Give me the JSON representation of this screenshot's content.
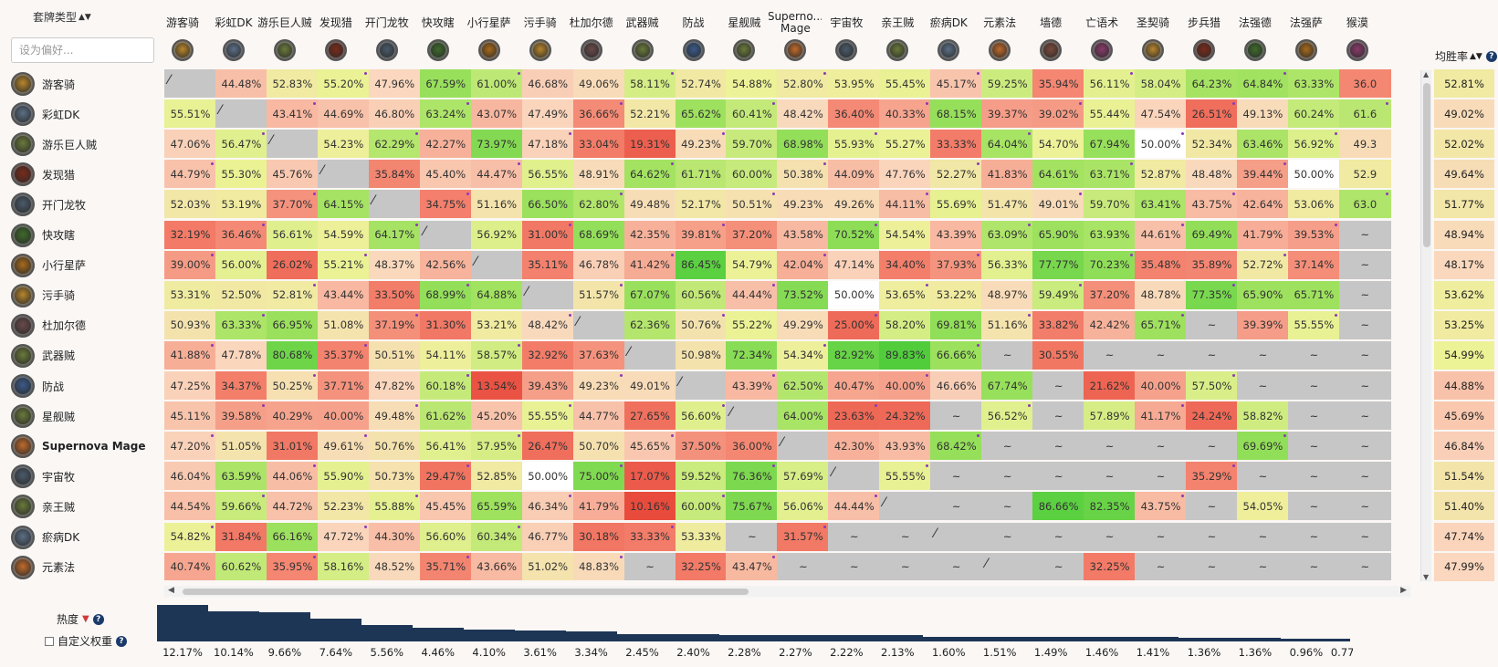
{
  "header": {
    "deck_type_label": "套牌类型",
    "search_placeholder": "设为偏好...",
    "winrate_label": "均胜率"
  },
  "footer": {
    "popularity_label": "热度",
    "custom_weight_label": "自定义权重"
  },
  "colors": {
    "red": "#f06a58",
    "neutral": "#f5f3b4",
    "green": "#63d23f",
    "grey": "#c6c6c6",
    "bar": "#1e3656"
  },
  "columns": [
    {
      "name": "游客骑",
      "icon": "paladin-icon",
      "color": "#b8862b"
    },
    {
      "name": "彩虹DK",
      "icon": "death-knight-icon",
      "color": "#5b6f86"
    },
    {
      "name": "游乐巨人贼",
      "icon": "rogue-icon",
      "color": "#6a7a3a"
    },
    {
      "name": "发现猎",
      "icon": "hunter-icon",
      "color": "#7a2a1a"
    },
    {
      "name": "开门龙牧",
      "icon": "priest-icon",
      "color": "#4a5a6a"
    },
    {
      "name": "快攻瞎",
      "icon": "demon-hunter-icon",
      "color": "#3e6a2a"
    },
    {
      "name": "小行星萨",
      "icon": "shaman-icon",
      "color": "#a86a1a"
    },
    {
      "name": "污手骑",
      "icon": "paladin-icon",
      "color": "#b8862b"
    },
    {
      "name": "杜加尔德",
      "icon": "warrior-icon",
      "color": "#6a4a4a"
    },
    {
      "name": "武器贼",
      "icon": "rogue-icon",
      "color": "#6a7a3a"
    },
    {
      "name": "防战",
      "icon": "warrior-icon",
      "color": "#3a5a8a"
    },
    {
      "name": "星舰贼",
      "icon": "rogue-icon",
      "color": "#6a7a3a"
    },
    {
      "name": "Superno...\nMage",
      "icon": "mage-icon",
      "color": "#c06a2a"
    },
    {
      "name": "宇宙牧",
      "icon": "priest-icon",
      "color": "#4a5a6a"
    },
    {
      "name": "亲王贼",
      "icon": "rogue-icon",
      "color": "#6a7a3a"
    },
    {
      "name": "瘀病DK",
      "icon": "death-knight-icon",
      "color": "#5b6f86"
    },
    {
      "name": "元素法",
      "icon": "mage-icon",
      "color": "#c06a2a"
    },
    {
      "name": "墙德",
      "icon": "druid-icon",
      "color": "#7a4a3a"
    },
    {
      "name": "亡语术",
      "icon": "warlock-icon",
      "color": "#8a3a6a"
    },
    {
      "name": "圣契骑",
      "icon": "paladin-icon",
      "color": "#b8862b"
    },
    {
      "name": "步兵猎",
      "icon": "hunter-icon",
      "color": "#7a2a1a"
    },
    {
      "name": "法强德",
      "icon": "druid-icon",
      "color": "#3e6a2a"
    },
    {
      "name": "法强萨",
      "icon": "shaman-icon",
      "color": "#a86a1a"
    },
    {
      "name": "猴漠",
      "icon": "warlock-icon",
      "color": "#8a3a6a"
    }
  ],
  "rows": [
    {
      "name": "游客骑",
      "icon": "paladin-icon",
      "color": "#b8862b",
      "winrate": "52.81%"
    },
    {
      "name": "彩虹DK",
      "icon": "death-knight-icon",
      "color": "#5b6f86",
      "winrate": "49.02%"
    },
    {
      "name": "游乐巨人贼",
      "icon": "rogue-icon",
      "color": "#6a7a3a",
      "winrate": "52.02%"
    },
    {
      "name": "发现猎",
      "icon": "hunter-icon",
      "color": "#7a2a1a",
      "winrate": "49.64%"
    },
    {
      "name": "开门龙牧",
      "icon": "priest-icon",
      "color": "#4a5a6a",
      "winrate": "51.77%"
    },
    {
      "name": "快攻瞎",
      "icon": "demon-hunter-icon",
      "color": "#3e6a2a",
      "winrate": "48.94%"
    },
    {
      "name": "小行星萨",
      "icon": "shaman-icon",
      "color": "#a86a1a",
      "winrate": "48.17%"
    },
    {
      "name": "污手骑",
      "icon": "paladin-icon",
      "color": "#b8862b",
      "winrate": "53.62%"
    },
    {
      "name": "杜加尔德",
      "icon": "warrior-icon",
      "color": "#6a4a4a",
      "winrate": "53.25%"
    },
    {
      "name": "武器贼",
      "icon": "rogue-icon",
      "color": "#6a7a3a",
      "winrate": "54.99%"
    },
    {
      "name": "防战",
      "icon": "warrior-icon",
      "color": "#3a5a8a",
      "winrate": "44.88%"
    },
    {
      "name": "星舰贼",
      "icon": "rogue-icon",
      "color": "#6a7a3a",
      "winrate": "45.69%"
    },
    {
      "name": "Supernova Mage",
      "icon": "mage-icon",
      "color": "#c06a2a",
      "winrate": "46.84%",
      "bold": true
    },
    {
      "name": "宇宙牧",
      "icon": "priest-icon",
      "color": "#4a5a6a",
      "winrate": "51.54%"
    },
    {
      "name": "亲王贼",
      "icon": "rogue-icon",
      "color": "#6a7a3a",
      "winrate": "51.40%"
    },
    {
      "name": "瘀病DK",
      "icon": "death-knight-icon",
      "color": "#5b6f86",
      "winrate": "47.74%"
    },
    {
      "name": "元素法",
      "icon": "mage-icon",
      "color": "#c06a2a",
      "winrate": "47.99%"
    }
  ],
  "matrix": [
    [
      "/",
      "44.48%",
      "52.83%",
      "55.20%",
      "47.96%",
      "67.59%",
      "61.00%",
      "46.68%",
      "49.06%",
      "58.11%",
      "52.74%",
      "54.88%",
      "52.80%",
      "53.95%",
      "55.45%",
      "45.17%",
      "59.25%",
      "35.94%",
      "56.11%",
      "58.04%",
      "64.23%",
      "64.84%",
      "63.33%",
      "36.0"
    ],
    [
      "55.51%",
      "/",
      "43.41%",
      "44.69%",
      "46.80%",
      "63.24%",
      "43.07%",
      "47.49%",
      "36.66%",
      "52.21%",
      "65.62%",
      "60.41%",
      "48.42%",
      "36.40%",
      "40.33%",
      "68.15%",
      "39.37%",
      "39.02%",
      "55.44%",
      "47.54%",
      "26.51%",
      "49.13%",
      "60.24%",
      "61.6"
    ],
    [
      "47.06%",
      "56.47%",
      "/",
      "54.23%",
      "62.29%",
      "42.27%",
      "73.97%",
      "47.18%",
      "33.04%",
      "19.31%",
      "49.23%",
      "59.70%",
      "68.98%",
      "55.93%",
      "55.27%",
      "33.33%",
      "64.04%",
      "54.70%",
      "67.94%",
      "50.00%",
      "52.34%",
      "63.46%",
      "56.92%",
      "49.3"
    ],
    [
      "44.79%",
      "55.30%",
      "45.76%",
      "/",
      "35.84%",
      "45.40%",
      "44.47%",
      "56.55%",
      "48.91%",
      "64.62%",
      "61.71%",
      "60.00%",
      "50.38%",
      "44.09%",
      "47.76%",
      "52.27%",
      "41.83%",
      "64.61%",
      "63.71%",
      "52.87%",
      "48.48%",
      "39.44%",
      "50.00%",
      "52.9"
    ],
    [
      "52.03%",
      "53.19%",
      "37.70%",
      "64.15%",
      "/",
      "34.75%",
      "51.16%",
      "66.50%",
      "62.80%",
      "49.48%",
      "52.17%",
      "50.51%",
      "49.23%",
      "49.26%",
      "44.11%",
      "55.69%",
      "51.47%",
      "49.01%",
      "59.70%",
      "63.41%",
      "43.75%",
      "42.64%",
      "53.06%",
      "63.0"
    ],
    [
      "32.19%",
      "36.46%",
      "56.61%",
      "54.59%",
      "64.17%",
      "/",
      "56.92%",
      "31.00%",
      "68.69%",
      "42.35%",
      "39.81%",
      "37.20%",
      "43.58%",
      "70.52%",
      "54.54%",
      "43.39%",
      "63.09%",
      "65.90%",
      "63.93%",
      "44.61%",
      "69.49%",
      "41.79%",
      "39.53%",
      "~"
    ],
    [
      "39.00%",
      "56.00%",
      "26.02%",
      "55.21%",
      "48.37%",
      "42.56%",
      "/",
      "35.11%",
      "46.78%",
      "41.42%",
      "86.45%",
      "54.79%",
      "42.04%",
      "47.14%",
      "34.40%",
      "37.93%",
      "56.33%",
      "77.77%",
      "70.23%",
      "35.48%",
      "35.89%",
      "52.72%",
      "37.14%",
      "~"
    ],
    [
      "53.31%",
      "52.50%",
      "52.81%",
      "43.44%",
      "33.50%",
      "68.99%",
      "64.88%",
      "/",
      "51.57%",
      "67.07%",
      "60.56%",
      "44.44%",
      "73.52%",
      "50.00%",
      "53.65%",
      "53.22%",
      "48.97%",
      "59.49%",
      "37.20%",
      "48.78%",
      "77.35%",
      "65.90%",
      "65.71%",
      "~"
    ],
    [
      "50.93%",
      "63.33%",
      "66.95%",
      "51.08%",
      "37.19%",
      "31.30%",
      "53.21%",
      "48.42%",
      "/",
      "62.36%",
      "50.76%",
      "55.22%",
      "49.29%",
      "25.00%",
      "58.20%",
      "69.81%",
      "51.16%",
      "33.82%",
      "42.42%",
      "65.71%",
      "~",
      "39.39%",
      "55.55%",
      "~"
    ],
    [
      "41.88%",
      "47.78%",
      "80.68%",
      "35.37%",
      "50.51%",
      "54.11%",
      "58.57%",
      "32.92%",
      "37.63%",
      "/",
      "50.98%",
      "72.34%",
      "54.34%",
      "82.92%",
      "89.83%",
      "66.66%",
      "~",
      "30.55%",
      "~",
      "~",
      "~",
      "~",
      "~",
      "~"
    ],
    [
      "47.25%",
      "34.37%",
      "50.25%",
      "37.71%",
      "47.82%",
      "60.18%",
      "13.54%",
      "39.43%",
      "49.23%",
      "49.01%",
      "/",
      "43.39%",
      "62.50%",
      "40.47%",
      "40.00%",
      "46.66%",
      "67.74%",
      "~",
      "21.62%",
      "40.00%",
      "57.50%",
      "~",
      "~",
      "~"
    ],
    [
      "45.11%",
      "39.58%",
      "40.29%",
      "40.00%",
      "49.48%",
      "61.62%",
      "45.20%",
      "55.55%",
      "44.77%",
      "27.65%",
      "56.60%",
      "/",
      "64.00%",
      "23.63%",
      "24.32%",
      "~",
      "56.52%",
      "~",
      "57.89%",
      "41.17%",
      "24.24%",
      "58.82%",
      "~",
      "~"
    ],
    [
      "47.20%",
      "51.05%",
      "31.01%",
      "49.61%",
      "50.76%",
      "56.41%",
      "57.95%",
      "26.47%",
      "50.70%",
      "45.65%",
      "37.50%",
      "36.00%",
      "/",
      "42.30%",
      "43.93%",
      "68.42%",
      "~",
      "~",
      "~",
      "~",
      "~",
      "69.69%",
      "~",
      "~"
    ],
    [
      "46.04%",
      "63.59%",
      "44.06%",
      "55.90%",
      "50.73%",
      "29.47%",
      "52.85%",
      "50.00%",
      "75.00%",
      "17.07%",
      "59.52%",
      "76.36%",
      "57.69%",
      "/",
      "55.55%",
      "~",
      "~",
      "~",
      "~",
      "~",
      "35.29%",
      "~",
      "~",
      "~"
    ],
    [
      "44.54%",
      "59.66%",
      "44.72%",
      "52.23%",
      "55.88%",
      "45.45%",
      "65.59%",
      "46.34%",
      "41.79%",
      "10.16%",
      "60.00%",
      "75.67%",
      "56.06%",
      "44.44%",
      "/",
      "~",
      "~",
      "86.66%",
      "82.35%",
      "43.75%",
      "~",
      "54.05%",
      "~",
      "~"
    ],
    [
      "54.82%",
      "31.84%",
      "66.16%",
      "47.72%",
      "44.30%",
      "56.60%",
      "60.34%",
      "46.77%",
      "30.18%",
      "33.33%",
      "53.33%",
      "~",
      "31.57%",
      "~",
      "~",
      "/",
      "~",
      "~",
      "~",
      "~",
      "~",
      "~",
      "~",
      "~"
    ],
    [
      "40.74%",
      "60.62%",
      "35.95%",
      "58.16%",
      "48.52%",
      "35.71%",
      "43.66%",
      "51.02%",
      "48.83%",
      "~",
      "32.25%",
      "43.47%",
      "~",
      "~",
      "~",
      "~",
      "/",
      "~",
      "32.25%",
      "~",
      "~",
      "~",
      "~",
      "~"
    ]
  ],
  "popularity": [
    "12.17%",
    "10.14%",
    "9.66%",
    "7.64%",
    "5.56%",
    "4.46%",
    "4.10%",
    "3.61%",
    "3.34%",
    "2.45%",
    "2.40%",
    "2.28%",
    "2.27%",
    "2.22%",
    "2.13%",
    "1.60%",
    "1.51%",
    "1.49%",
    "1.46%",
    "1.41%",
    "1.36%",
    "1.36%",
    "0.96%",
    "0.77"
  ]
}
